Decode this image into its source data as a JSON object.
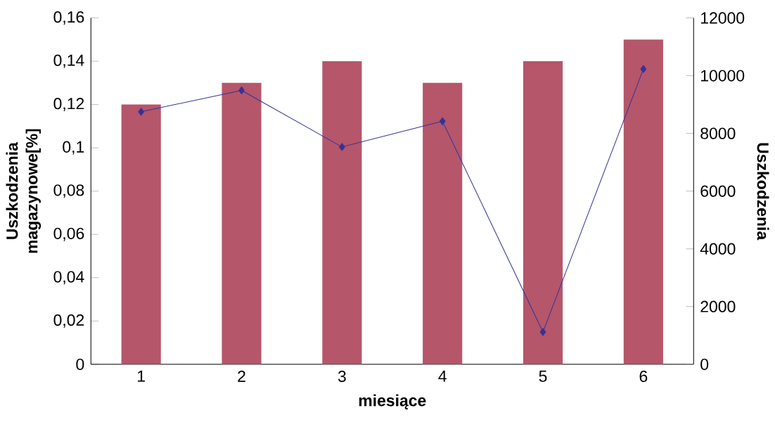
{
  "chart_data": {
    "type": "bar",
    "xlabel": "miesiące",
    "ylabel": "Uszkodzenia magazynowe[%]",
    "y2label": "Uszkodzenia",
    "categories": [
      "1",
      "2",
      "3",
      "4",
      "5",
      "6"
    ],
    "series": [
      {
        "color": "#b5566a",
        "values": [
          0.12,
          0.13,
          0.14,
          0.13,
          0.14,
          0.15
        ]
      },
      {
        "type": "line",
        "axis": "y2",
        "color": "#333399",
        "marker": "diamond",
        "values": [
          8750,
          9490,
          7530,
          8420,
          1120,
          10230
        ]
      }
    ],
    "ylim": [
      0,
      0.16
    ],
    "yticks": [
      0,
      {
        "value": 0.02,
        "label": "0,02"
      },
      {
        "value": 0.04,
        "label": "0,04"
      },
      {
        "value": 0.06,
        "label": "0,06"
      },
      {
        "value": 0.08,
        "label": "0,08"
      },
      {
        "value": 0.1,
        "label": "0,1"
      },
      {
        "value": 0.12,
        "label": "0,12"
      },
      {
        "value": 0.14,
        "label": "0,14"
      },
      {
        "value": 0.16,
        "label": "0,16"
      }
    ],
    "y2lim": [
      0,
      12000
    ],
    "y2ticks": [
      0,
      2000,
      4000,
      6000,
      8000,
      10000,
      12000
    ],
    "grid": false
  }
}
